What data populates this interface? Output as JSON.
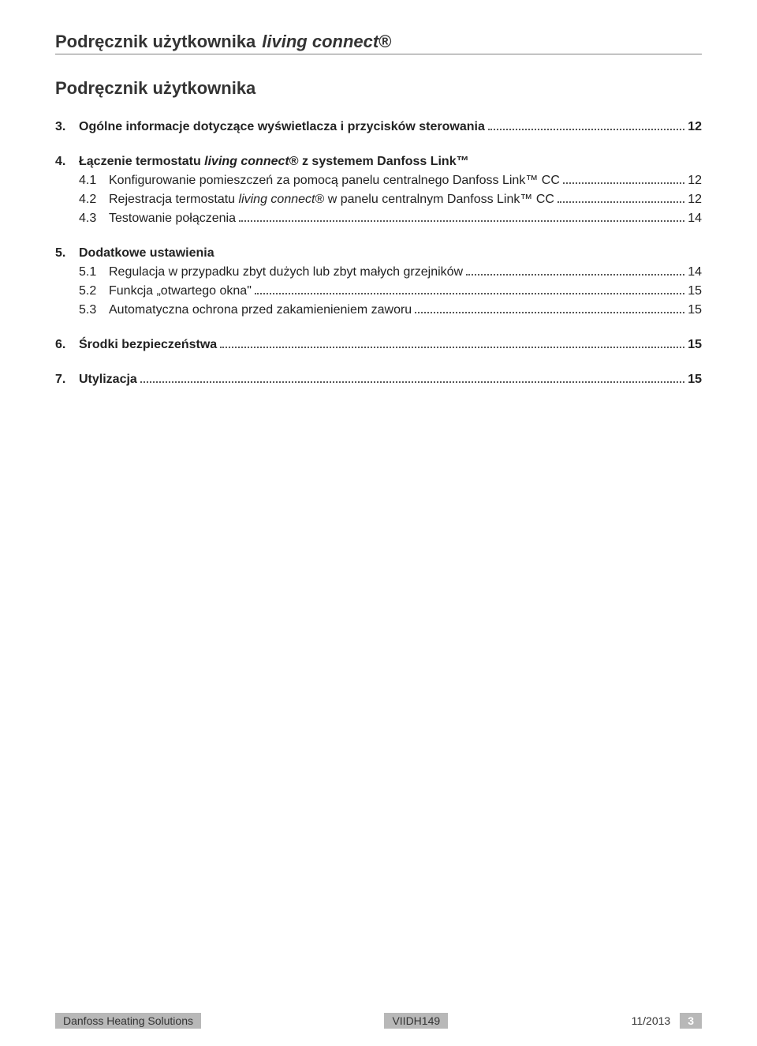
{
  "header": {
    "part1": "Podręcznik użytkownika",
    "part2_italic": "living connect",
    "part2_reg": "®"
  },
  "subheader": "Podręcznik użytkownika",
  "toc": [
    {
      "num": "3.",
      "title_parts": [
        {
          "text": "Ogólne informacje dotyczące wyświetlacza i przycisków sterowania",
          "italic": false
        }
      ],
      "bold": true,
      "page": "12",
      "subs": []
    },
    {
      "num": "4.",
      "title_parts": [
        {
          "text": "Łączenie termostatu ",
          "italic": false
        },
        {
          "text": "living connect",
          "italic": true
        },
        {
          "text": "® z systemem Danfoss Link™",
          "italic": false
        }
      ],
      "bold": true,
      "page": null,
      "subs": [
        {
          "num": "4.1",
          "title_parts": [
            {
              "text": "Konfigurowanie pomieszczeń za pomocą panelu centralnego Danfoss Link™ CC",
              "italic": false
            }
          ],
          "page": "12"
        },
        {
          "num": "4.2",
          "title_parts": [
            {
              "text": "Rejestracja termostatu ",
              "italic": false
            },
            {
              "text": "living connect",
              "italic": true
            },
            {
              "text": "® w panelu centralnym Danfoss Link™ CC",
              "italic": false
            }
          ],
          "page": "12"
        },
        {
          "num": "4.3",
          "title_parts": [
            {
              "text": "Testowanie połączenia",
              "italic": false
            }
          ],
          "page": "14"
        }
      ]
    },
    {
      "num": "5.",
      "title_parts": [
        {
          "text": "Dodatkowe ustawienia",
          "italic": false
        }
      ],
      "bold": true,
      "page": null,
      "subs": [
        {
          "num": "5.1",
          "title_parts": [
            {
              "text": "Regulacja w przypadku zbyt dużych lub zbyt małych grzejników",
              "italic": false
            }
          ],
          "page": "14"
        },
        {
          "num": "5.2",
          "title_parts": [
            {
              "text": "Funkcja „otwartego okna\"",
              "italic": false
            }
          ],
          "page": "15"
        },
        {
          "num": "5.3",
          "title_parts": [
            {
              "text": "Automatyczna ochrona przed zakamienieniem zaworu",
              "italic": false
            }
          ],
          "page": "15"
        }
      ]
    },
    {
      "num": "6.",
      "title_parts": [
        {
          "text": "Środki bezpieczeństwa",
          "italic": false
        }
      ],
      "bold": true,
      "page": "15",
      "subs": []
    },
    {
      "num": "7.",
      "title_parts": [
        {
          "text": "Utylizacja",
          "italic": false
        }
      ],
      "bold": true,
      "page": "15",
      "subs": []
    }
  ],
  "footer": {
    "left": "Danfoss Heating Solutions",
    "center": "VIIDH149",
    "date": "11/2013",
    "page": "3"
  }
}
